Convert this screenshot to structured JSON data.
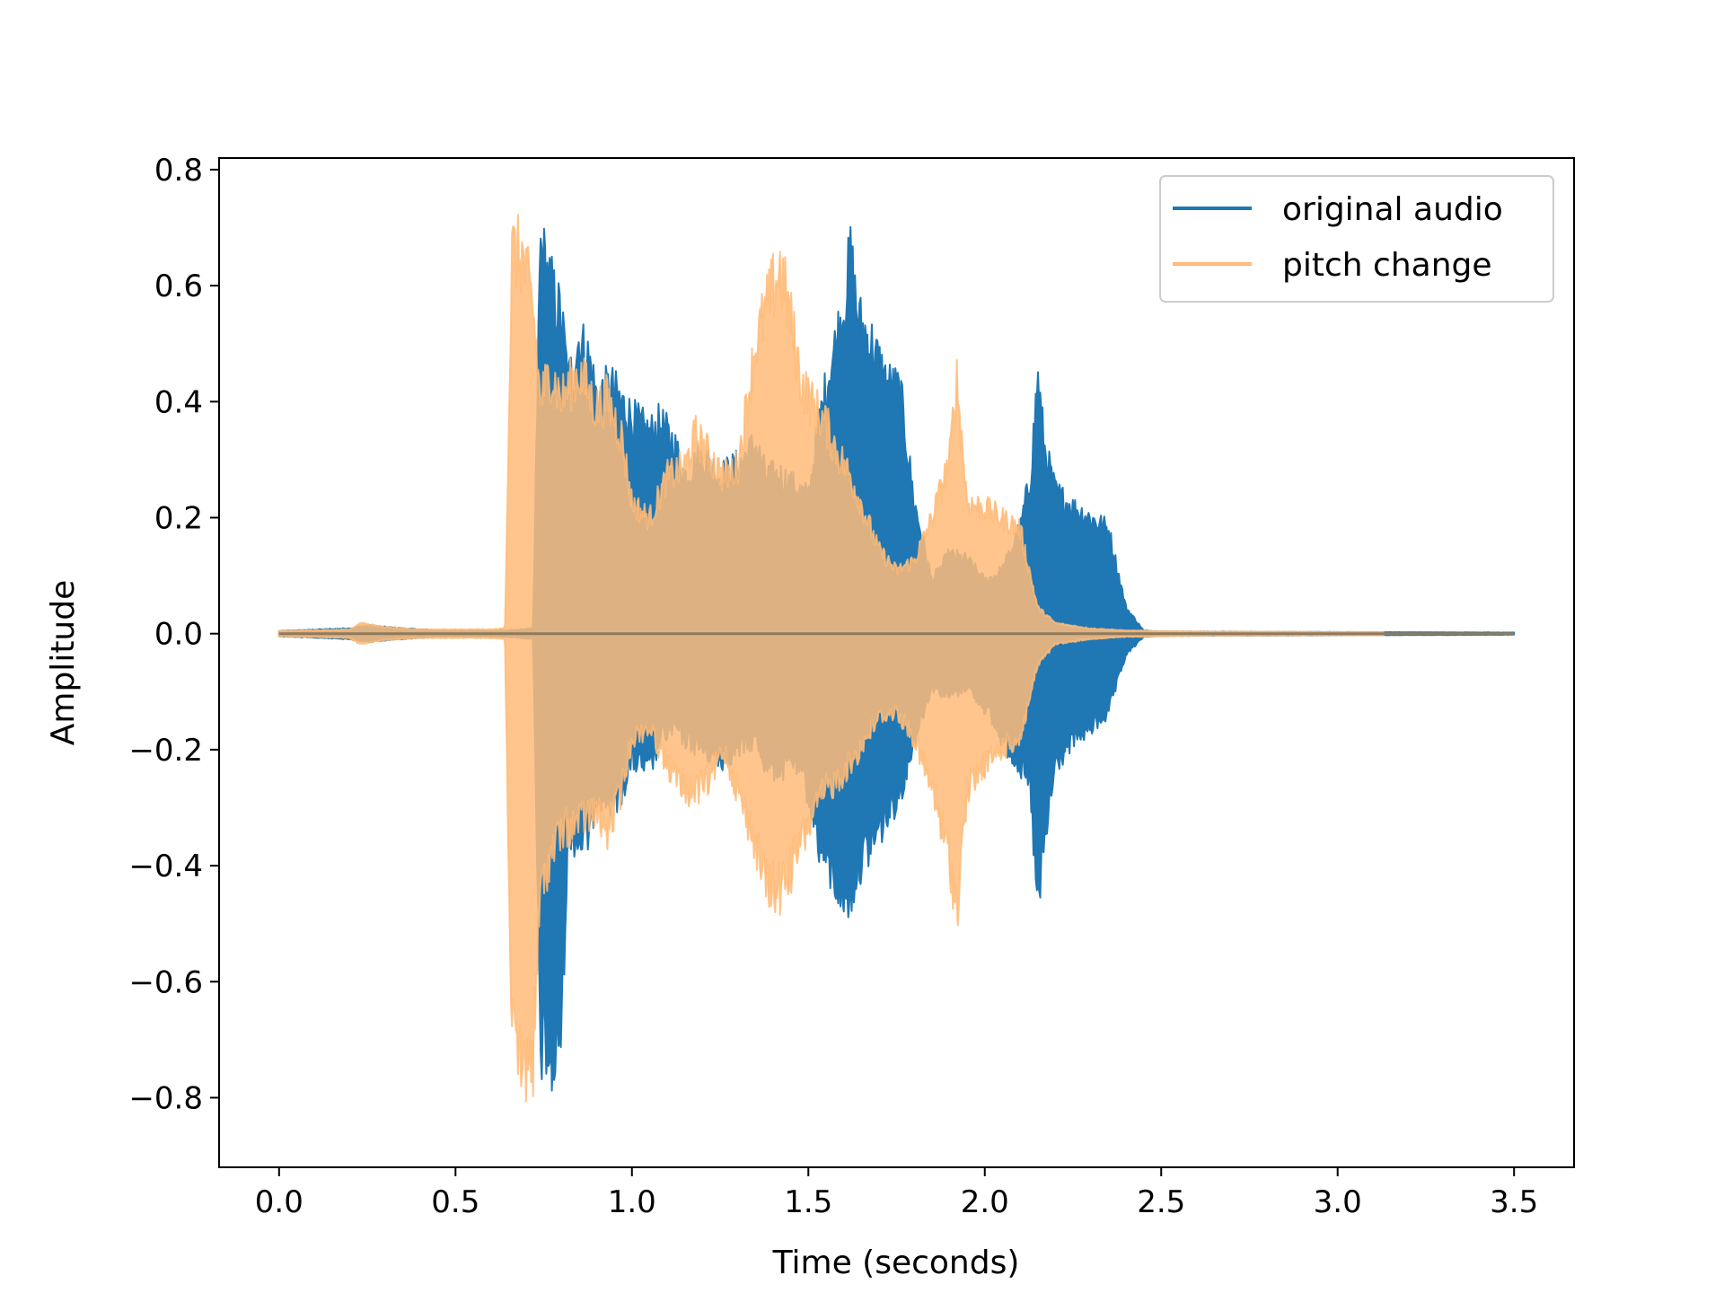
{
  "chart_data": {
    "type": "line",
    "title": "",
    "xlabel": "Time (seconds)",
    "ylabel": "Amplitude",
    "xlim": [
      -0.17,
      3.67
    ],
    "ylim": [
      -0.92,
      0.82
    ],
    "xticks": [
      {
        "value": 0.0,
        "label": "0.0"
      },
      {
        "value": 0.5,
        "label": "0.5"
      },
      {
        "value": 1.0,
        "label": "1.0"
      },
      {
        "value": 1.5,
        "label": "1.5"
      },
      {
        "value": 2.0,
        "label": "2.0"
      },
      {
        "value": 2.5,
        "label": "2.5"
      },
      {
        "value": 3.0,
        "label": "3.0"
      },
      {
        "value": 3.5,
        "label": "3.5"
      }
    ],
    "yticks": [
      {
        "value": 0.8,
        "label": "0.8"
      },
      {
        "value": 0.6,
        "label": "0.6"
      },
      {
        "value": 0.4,
        "label": "0.4"
      },
      {
        "value": 0.2,
        "label": "0.2"
      },
      {
        "value": 0.0,
        "label": "0.0"
      },
      {
        "value": -0.2,
        "label": "−0.2"
      },
      {
        "value": -0.4,
        "label": "−0.4"
      },
      {
        "value": -0.6,
        "label": "−0.6"
      },
      {
        "value": -0.8,
        "label": "−0.8"
      }
    ],
    "grid": false,
    "legend_position": "top-right",
    "series": [
      {
        "name": "original audio",
        "color": "#1f77b4",
        "opacity": 1.0,
        "envelope_x": [
          0.0,
          0.2,
          0.25,
          0.35,
          0.45,
          0.55,
          0.65,
          0.72,
          0.74,
          0.755,
          0.78,
          0.8,
          0.82,
          0.85,
          0.88,
          0.9,
          0.94,
          0.97,
          1.0,
          1.05,
          1.08,
          1.12,
          1.15,
          1.2,
          1.25,
          1.3,
          1.35,
          1.38,
          1.42,
          1.46,
          1.5,
          1.53,
          1.56,
          1.6,
          1.62,
          1.64,
          1.68,
          1.72,
          1.76,
          1.8,
          1.85,
          1.9,
          1.95,
          2.0,
          2.05,
          2.1,
          2.13,
          2.15,
          2.17,
          2.2,
          2.25,
          2.3,
          2.35,
          2.4,
          2.45,
          2.5,
          3.0,
          3.5
        ],
        "envelope_upper": [
          0.005,
          0.01,
          0.015,
          0.01,
          0.006,
          0.006,
          0.006,
          0.01,
          0.74,
          0.7,
          0.64,
          0.6,
          0.48,
          0.56,
          0.52,
          0.45,
          0.47,
          0.44,
          0.41,
          0.38,
          0.4,
          0.36,
          0.3,
          0.34,
          0.3,
          0.32,
          0.36,
          0.3,
          0.3,
          0.28,
          0.26,
          0.4,
          0.5,
          0.62,
          0.72,
          0.6,
          0.55,
          0.48,
          0.46,
          0.25,
          0.1,
          0.15,
          0.14,
          0.1,
          0.12,
          0.2,
          0.3,
          0.49,
          0.35,
          0.27,
          0.24,
          0.22,
          0.2,
          0.05,
          0.006,
          0.004,
          0.003,
          0.002
        ],
        "envelope_lower": [
          -0.005,
          -0.01,
          -0.015,
          -0.01,
          -0.006,
          -0.006,
          -0.006,
          -0.01,
          -0.78,
          -0.79,
          -0.83,
          -0.74,
          -0.37,
          -0.4,
          -0.38,
          -0.3,
          -0.32,
          -0.3,
          -0.24,
          -0.26,
          -0.2,
          -0.18,
          -0.2,
          -0.22,
          -0.24,
          -0.22,
          -0.2,
          -0.25,
          -0.26,
          -0.24,
          -0.3,
          -0.4,
          -0.45,
          -0.5,
          -0.5,
          -0.44,
          -0.4,
          -0.35,
          -0.3,
          -0.2,
          -0.1,
          -0.12,
          -0.1,
          -0.14,
          -0.2,
          -0.25,
          -0.3,
          -0.53,
          -0.4,
          -0.25,
          -0.2,
          -0.18,
          -0.15,
          -0.04,
          -0.006,
          -0.004,
          -0.003,
          -0.002
        ]
      },
      {
        "name": "pitch change",
        "color": "#ffbb78",
        "opacity": 0.85,
        "envelope_x": [
          0.0,
          0.2,
          0.23,
          0.3,
          0.4,
          0.5,
          0.6,
          0.64,
          0.66,
          0.69,
          0.72,
          0.74,
          0.77,
          0.8,
          0.85,
          0.9,
          0.93,
          0.97,
          1.0,
          1.05,
          1.1,
          1.15,
          1.18,
          1.22,
          1.26,
          1.3,
          1.35,
          1.38,
          1.42,
          1.45,
          1.48,
          1.51,
          1.55,
          1.58,
          1.62,
          1.7,
          1.75,
          1.8,
          1.85,
          1.9,
          1.92,
          1.95,
          2.0,
          2.05,
          2.1,
          2.15,
          2.2,
          2.3,
          2.4,
          2.6,
          3.0,
          3.13
        ],
        "envelope_upper": [
          0.005,
          0.008,
          0.02,
          0.012,
          0.008,
          0.008,
          0.008,
          0.01,
          0.73,
          0.72,
          0.62,
          0.45,
          0.5,
          0.45,
          0.5,
          0.43,
          0.45,
          0.38,
          0.25,
          0.22,
          0.3,
          0.32,
          0.38,
          0.34,
          0.3,
          0.32,
          0.55,
          0.62,
          0.7,
          0.6,
          0.48,
          0.44,
          0.4,
          0.35,
          0.3,
          0.16,
          0.12,
          0.14,
          0.22,
          0.33,
          0.49,
          0.25,
          0.24,
          0.22,
          0.2,
          0.05,
          0.02,
          0.01,
          0.006,
          0.004,
          0.003,
          0.003
        ],
        "envelope_lower": [
          -0.005,
          -0.008,
          -0.02,
          -0.012,
          -0.008,
          -0.008,
          -0.008,
          -0.01,
          -0.78,
          -0.83,
          -0.8,
          -0.5,
          -0.42,
          -0.38,
          -0.36,
          -0.34,
          -0.38,
          -0.3,
          -0.2,
          -0.18,
          -0.25,
          -0.3,
          -0.3,
          -0.28,
          -0.22,
          -0.3,
          -0.4,
          -0.48,
          -0.49,
          -0.45,
          -0.4,
          -0.35,
          -0.3,
          -0.28,
          -0.25,
          -0.16,
          -0.15,
          -0.2,
          -0.3,
          -0.43,
          -0.53,
          -0.3,
          -0.25,
          -0.22,
          -0.2,
          -0.06,
          -0.02,
          -0.01,
          -0.006,
          -0.004,
          -0.003,
          -0.003
        ]
      }
    ],
    "overlap_color": "#8e7a5e"
  }
}
